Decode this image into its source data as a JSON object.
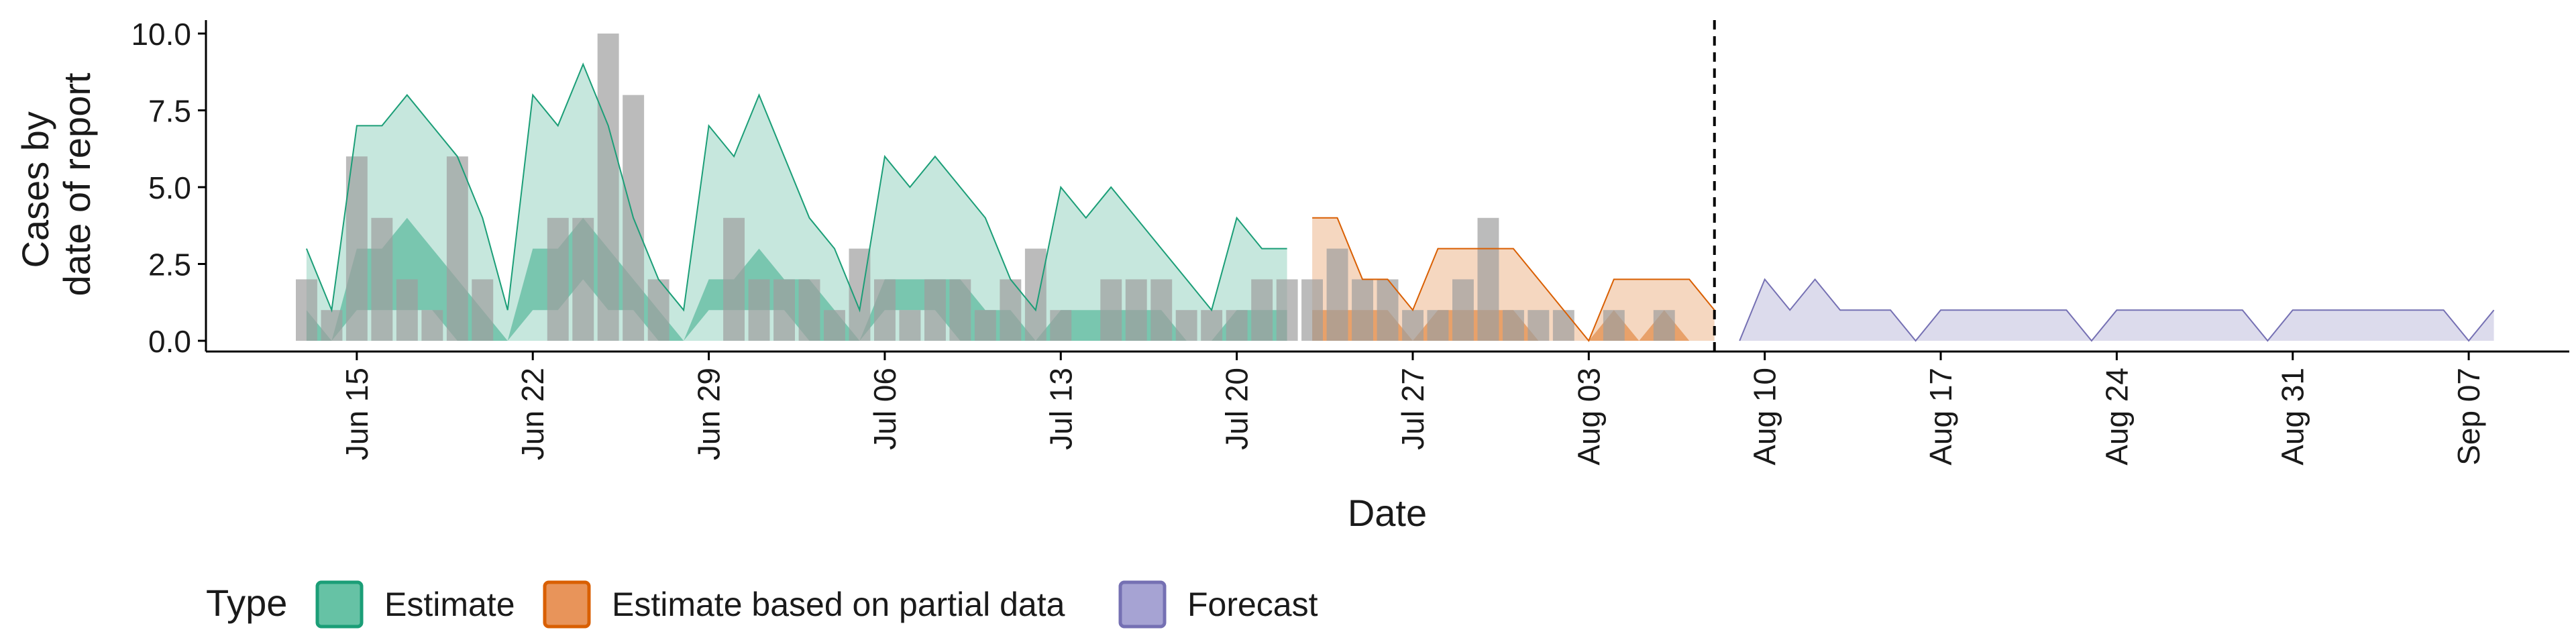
{
  "chart_data": {
    "type": "area",
    "title": "",
    "xlabel": "Date",
    "ylabel_lines": [
      "Cases by",
      "date of report"
    ],
    "ylim": [
      0,
      10
    ],
    "yticks": [
      0,
      2.5,
      5,
      7.5,
      10
    ],
    "ytick_labels": [
      "0.0",
      "2.5",
      "5.0",
      "7.5",
      "10.0"
    ],
    "xlim": [
      "2021-06-09",
      "2021-09-11"
    ],
    "xticks": [
      "2021-06-15",
      "2021-06-22",
      "2021-06-29",
      "2021-07-06",
      "2021-07-13",
      "2021-07-20",
      "2021-07-27",
      "2021-08-03",
      "2021-08-10",
      "2021-08-17",
      "2021-08-24",
      "2021-08-31",
      "2021-09-07"
    ],
    "xtick_labels": [
      "Jun 15",
      "Jun 22",
      "Jun 29",
      "Jul 06",
      "Jul 13",
      "Jul 20",
      "Jul 27",
      "Aug 03",
      "Aug 10",
      "Aug 17",
      "Aug 24",
      "Aug 31",
      "Sep 07"
    ],
    "forecast_date": "2021-08-08",
    "observed_cases": {
      "dates": [
        "2021-06-13",
        "2021-06-14",
        "2021-06-15",
        "2021-06-16",
        "2021-06-17",
        "2021-06-18",
        "2021-06-19",
        "2021-06-20",
        "2021-06-21",
        "2021-06-22",
        "2021-06-23",
        "2021-06-24",
        "2021-06-25",
        "2021-06-26",
        "2021-06-27",
        "2021-06-28",
        "2021-06-29",
        "2021-06-30",
        "2021-07-01",
        "2021-07-02",
        "2021-07-03",
        "2021-07-04",
        "2021-07-05",
        "2021-07-06",
        "2021-07-07",
        "2021-07-08",
        "2021-07-09",
        "2021-07-10",
        "2021-07-11",
        "2021-07-12",
        "2021-07-13",
        "2021-07-14",
        "2021-07-15",
        "2021-07-16",
        "2021-07-17",
        "2021-07-18",
        "2021-07-19",
        "2021-07-20",
        "2021-07-21",
        "2021-07-22",
        "2021-07-23",
        "2021-07-24",
        "2021-07-25",
        "2021-07-26",
        "2021-07-27",
        "2021-07-28",
        "2021-07-29",
        "2021-07-30",
        "2021-07-31",
        "2021-08-01",
        "2021-08-02",
        "2021-08-03",
        "2021-08-04",
        "2021-08-05",
        "2021-08-06",
        "2021-08-07"
      ],
      "values": [
        2,
        1,
        6,
        4,
        2,
        1,
        6,
        2,
        0,
        0,
        4,
        4,
        10,
        8,
        2,
        0,
        0,
        4,
        2,
        2,
        2,
        1,
        3,
        2,
        1,
        2,
        2,
        1,
        2,
        3,
        1,
        0,
        2,
        2,
        2,
        1,
        1,
        1,
        2,
        2,
        2,
        3,
        2,
        2,
        1,
        1,
        2,
        4,
        1,
        1,
        1,
        0,
        1,
        0,
        1,
        0
      ]
    },
    "series": [
      {
        "name": "Estimate",
        "color": "#1B9E77",
        "dates": [
          "2021-06-13",
          "2021-06-14",
          "2021-06-15",
          "2021-06-16",
          "2021-06-17",
          "2021-06-18",
          "2021-06-19",
          "2021-06-20",
          "2021-06-21",
          "2021-06-22",
          "2021-06-23",
          "2021-06-24",
          "2021-06-25",
          "2021-06-26",
          "2021-06-27",
          "2021-06-28",
          "2021-06-29",
          "2021-06-30",
          "2021-07-01",
          "2021-07-02",
          "2021-07-03",
          "2021-07-04",
          "2021-07-05",
          "2021-07-06",
          "2021-07-07",
          "2021-07-08",
          "2021-07-09",
          "2021-07-10",
          "2021-07-11",
          "2021-07-12",
          "2021-07-13",
          "2021-07-14",
          "2021-07-15",
          "2021-07-16",
          "2021-07-17",
          "2021-07-18",
          "2021-07-19",
          "2021-07-20",
          "2021-07-21",
          "2021-07-22"
        ],
        "upper90": [
          3,
          1,
          7,
          7,
          8,
          7,
          6,
          4,
          1,
          8,
          7,
          9,
          7,
          4,
          2,
          1,
          7,
          6,
          8,
          6,
          4,
          3,
          1,
          6,
          5,
          6,
          5,
          4,
          2,
          1,
          5,
          4,
          5,
          4,
          3,
          2,
          1,
          4,
          3,
          3
        ],
        "upper50": [
          1,
          0,
          3,
          3,
          4,
          3,
          2,
          1,
          0,
          3,
          3,
          4,
          3,
          2,
          1,
          0,
          2,
          2,
          3,
          2,
          2,
          1,
          0,
          2,
          2,
          2,
          2,
          1,
          1,
          0,
          1,
          1,
          1,
          1,
          1,
          0,
          0,
          1,
          1,
          1
        ],
        "lower50": [
          0,
          0,
          1,
          1,
          1,
          1,
          0,
          0,
          0,
          1,
          1,
          2,
          1,
          1,
          0,
          0,
          1,
          1,
          1,
          1,
          0,
          0,
          0,
          1,
          1,
          1,
          0,
          0,
          0,
          0,
          0,
          0,
          0,
          0,
          0,
          0,
          0,
          0,
          0,
          0
        ],
        "lower90": [
          0,
          0,
          0,
          0,
          0,
          0,
          0,
          0,
          0,
          0,
          0,
          0,
          0,
          0,
          0,
          0,
          0,
          0,
          0,
          0,
          0,
          0,
          0,
          0,
          0,
          0,
          0,
          0,
          0,
          0,
          0,
          0,
          0,
          0,
          0,
          0,
          0,
          0,
          0,
          0
        ]
      },
      {
        "name": "Estimate based on partial data",
        "color": "#D95F02",
        "dates": [
          "2021-07-23",
          "2021-07-24",
          "2021-07-25",
          "2021-07-26",
          "2021-07-27",
          "2021-07-28",
          "2021-07-29",
          "2021-07-30",
          "2021-07-31",
          "2021-08-01",
          "2021-08-02",
          "2021-08-03",
          "2021-08-04",
          "2021-08-05",
          "2021-08-06",
          "2021-08-07",
          "2021-08-08"
        ],
        "upper90": [
          4,
          4,
          2,
          2,
          1,
          3,
          3,
          3,
          3,
          2,
          1,
          0,
          2,
          2,
          2,
          2,
          1
        ],
        "upper50": [
          1,
          1,
          1,
          1,
          0,
          1,
          1,
          1,
          1,
          0,
          0,
          0,
          1,
          0,
          1,
          0,
          0
        ],
        "lower50": [
          0,
          0,
          0,
          0,
          0,
          0,
          0,
          0,
          0,
          0,
          0,
          0,
          0,
          0,
          0,
          0,
          0
        ],
        "lower90": [
          0,
          0,
          0,
          0,
          0,
          0,
          0,
          0,
          0,
          0,
          0,
          0,
          0,
          0,
          0,
          0,
          0
        ]
      },
      {
        "name": "Forecast",
        "color": "#7570B3",
        "dates": [
          "2021-08-09",
          "2021-08-10",
          "2021-08-11",
          "2021-08-12",
          "2021-08-13",
          "2021-08-14",
          "2021-08-15",
          "2021-08-16",
          "2021-08-17",
          "2021-08-18",
          "2021-08-19",
          "2021-08-20",
          "2021-08-21",
          "2021-08-22",
          "2021-08-23",
          "2021-08-24",
          "2021-08-25",
          "2021-08-26",
          "2021-08-27",
          "2021-08-28",
          "2021-08-29",
          "2021-08-30",
          "2021-08-31",
          "2021-09-01",
          "2021-09-02",
          "2021-09-03",
          "2021-09-04",
          "2021-09-05",
          "2021-09-06",
          "2021-09-07",
          "2021-09-08"
        ],
        "upper90": [
          0,
          2,
          1,
          2,
          1,
          1,
          1,
          0,
          1,
          1,
          1,
          1,
          1,
          1,
          0,
          1,
          1,
          1,
          1,
          1,
          1,
          0,
          1,
          1,
          1,
          1,
          1,
          1,
          1,
          0,
          1
        ],
        "upper50": [
          0,
          0,
          0,
          0,
          0,
          0,
          0,
          0,
          0,
          0,
          0,
          0,
          0,
          0,
          0,
          0,
          0,
          0,
          0,
          0,
          0,
          0,
          0,
          0,
          0,
          0,
          0,
          0,
          0,
          0,
          0
        ],
        "lower50": [
          0,
          0,
          0,
          0,
          0,
          0,
          0,
          0,
          0,
          0,
          0,
          0,
          0,
          0,
          0,
          0,
          0,
          0,
          0,
          0,
          0,
          0,
          0,
          0,
          0,
          0,
          0,
          0,
          0,
          0,
          0
        ],
        "lower90": [
          0,
          0,
          0,
          0,
          0,
          0,
          0,
          0,
          0,
          0,
          0,
          0,
          0,
          0,
          0,
          0,
          0,
          0,
          0,
          0,
          0,
          0,
          0,
          0,
          0,
          0,
          0,
          0,
          0,
          0,
          0
        ]
      }
    ],
    "bar_color": "#9e9e9e",
    "grid": false,
    "legend": {
      "position": "bottom-left",
      "title": "Type",
      "entries": [
        {
          "label": "Estimate",
          "fill": "#66C2A5",
          "stroke": "#1B9E77"
        },
        {
          "label": "Estimate based on partial data",
          "fill": "#E8945A",
          "stroke": "#D95F02"
        },
        {
          "label": "Forecast",
          "fill": "#A6A3D3",
          "stroke": "#7570B3"
        }
      ]
    }
  }
}
